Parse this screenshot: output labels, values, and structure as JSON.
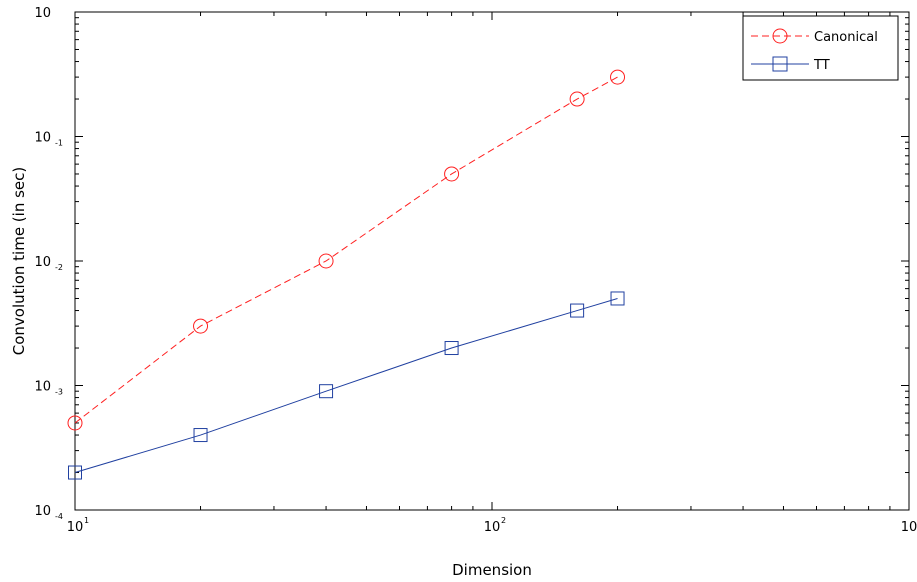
{
  "chart_data": {
    "type": "line",
    "xlabel": "Dimension",
    "ylabel": "Convolution time (in sec)",
    "xscale": "log",
    "yscale": "log",
    "xlim": [
      10,
      1000
    ],
    "ylim": [
      0.0001,
      1
    ],
    "x_ticks": [
      {
        "value": 10,
        "base": "10",
        "exp": "1"
      },
      {
        "value": 100,
        "base": "10",
        "exp": "2"
      },
      {
        "value": 1000,
        "base": "10",
        "exp": ""
      }
    ],
    "y_ticks": [
      {
        "value": 0.0001,
        "base": "10",
        "exp": "-4"
      },
      {
        "value": 0.001,
        "base": "10",
        "exp": "-3"
      },
      {
        "value": 0.01,
        "base": "10",
        "exp": "-2"
      },
      {
        "value": 0.1,
        "base": "10",
        "exp": "-1"
      },
      {
        "value": 1,
        "base": "10",
        "exp": ""
      }
    ],
    "legend_position": "top-right",
    "grid": false,
    "series": [
      {
        "name": "Canonical",
        "color": "#ff2020",
        "line_style": "dashed",
        "marker": "circle",
        "x": [
          10,
          20,
          40,
          80,
          160,
          200
        ],
        "y": [
          0.0005,
          0.003,
          0.01,
          0.05,
          0.2,
          0.3
        ]
      },
      {
        "name": "TT",
        "color": "#2040a0",
        "line_style": "solid",
        "marker": "square",
        "x": [
          10,
          20,
          40,
          80,
          160,
          200
        ],
        "y": [
          0.0002,
          0.0004,
          0.0009,
          0.002,
          0.004,
          0.005
        ]
      }
    ]
  }
}
